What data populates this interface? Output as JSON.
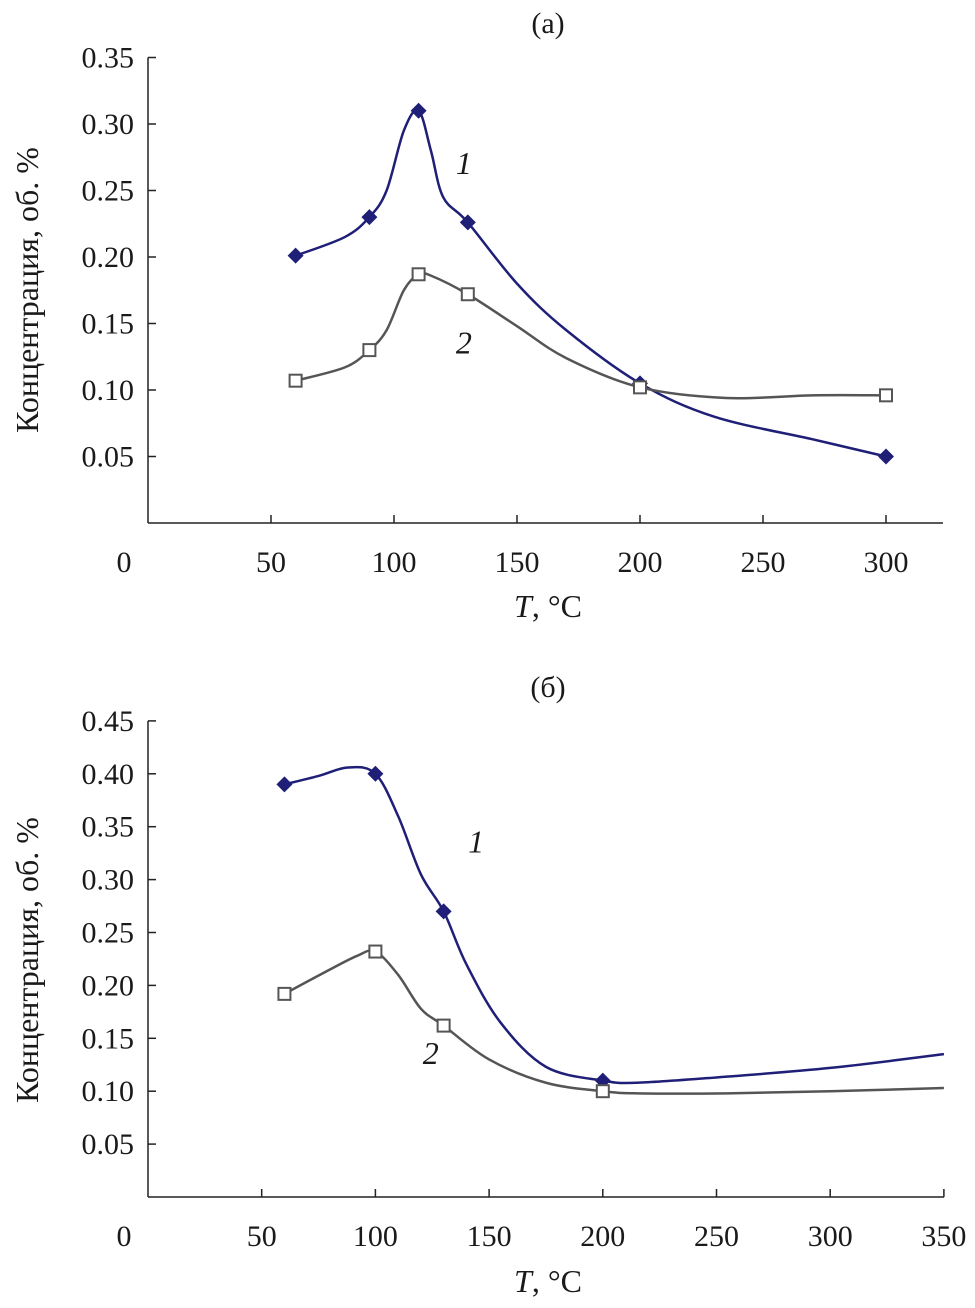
{
  "chart_data": [
    {
      "type": "line",
      "title": "(a)",
      "xlabel_italic": "T",
      "xlabel_rest": ", °C",
      "ylabel": "Концентрация, об. %",
      "xlim": [
        0,
        325
      ],
      "ylim": [
        0,
        0.35
      ],
      "xticks": [
        0,
        50,
        100,
        150,
        200,
        250,
        300
      ],
      "yticks": [
        "0.05",
        "0.10",
        "0.15",
        "0.20",
        "0.25",
        "0.30",
        "0.35"
      ],
      "grid": false,
      "series": [
        {
          "name": "1",
          "color": "#1f1f78",
          "marker": "diamond",
          "x": [
            60,
            90,
            110,
            130,
            200,
            300
          ],
          "y": [
            0.201,
            0.23,
            0.31,
            0.226,
            0.105,
            0.05
          ],
          "curve_x": [
            60,
            80,
            90,
            97,
            104,
            110,
            115,
            120,
            130,
            150,
            170,
            200,
            230,
            270,
            300
          ],
          "curve_y": [
            0.201,
            0.215,
            0.23,
            0.25,
            0.295,
            0.31,
            0.28,
            0.245,
            0.226,
            0.18,
            0.145,
            0.105,
            0.08,
            0.063,
            0.05
          ],
          "label_at": [
            117,
            0.27
          ]
        },
        {
          "name": "2",
          "color": "#555555",
          "marker": "square",
          "x": [
            60,
            90,
            110,
            130,
            200,
            300
          ],
          "y": [
            0.107,
            0.13,
            0.187,
            0.172,
            0.102,
            0.096
          ],
          "curve_x": [
            60,
            80,
            90,
            97,
            104,
            110,
            115,
            130,
            150,
            170,
            200,
            235,
            270,
            300
          ],
          "curve_y": [
            0.107,
            0.117,
            0.13,
            0.145,
            0.175,
            0.187,
            0.186,
            0.172,
            0.148,
            0.124,
            0.102,
            0.094,
            0.096,
            0.096
          ],
          "label_at": [
            117,
            0.135
          ]
        }
      ]
    },
    {
      "type": "line",
      "title": "(б)",
      "xlabel_italic": "T",
      "xlabel_rest": ", °C",
      "ylabel": "Концентрация, об. %",
      "xlim": [
        0,
        350
      ],
      "ylim": [
        0,
        0.45
      ],
      "xticks": [
        0,
        50,
        100,
        150,
        200,
        250,
        300,
        350
      ],
      "yticks": [
        "0.05",
        "0.10",
        "0.15",
        "0.20",
        "0.25",
        "0.30",
        "0.35",
        "0.40",
        "0.45"
      ],
      "grid": false,
      "series": [
        {
          "name": "1",
          "color": "#1f1f78",
          "marker": "diamond",
          "x": [
            60,
            100,
            130,
            200
          ],
          "y": [
            0.39,
            0.4,
            0.27,
            0.11
          ],
          "curve_x": [
            60,
            75,
            88,
            100,
            110,
            120,
            130,
            140,
            155,
            175,
            200,
            215,
            250,
            300,
            350
          ],
          "curve_y": [
            0.39,
            0.398,
            0.406,
            0.4,
            0.36,
            0.305,
            0.27,
            0.22,
            0.165,
            0.123,
            0.11,
            0.108,
            0.113,
            0.122,
            0.135
          ],
          "label_at": [
            132,
            0.335
          ]
        },
        {
          "name": "2",
          "color": "#555555",
          "marker": "square",
          "x": [
            60,
            100,
            130,
            200
          ],
          "y": [
            0.192,
            0.232,
            0.162,
            0.1
          ],
          "curve_x": [
            60,
            80,
            92,
            100,
            110,
            120,
            130,
            150,
            175,
            200,
            215,
            255,
            300,
            350
          ],
          "curve_y": [
            0.192,
            0.215,
            0.228,
            0.232,
            0.21,
            0.178,
            0.162,
            0.13,
            0.108,
            0.1,
            0.098,
            0.098,
            0.1,
            0.103
          ],
          "label_at": [
            112,
            0.135
          ]
        }
      ]
    }
  ]
}
